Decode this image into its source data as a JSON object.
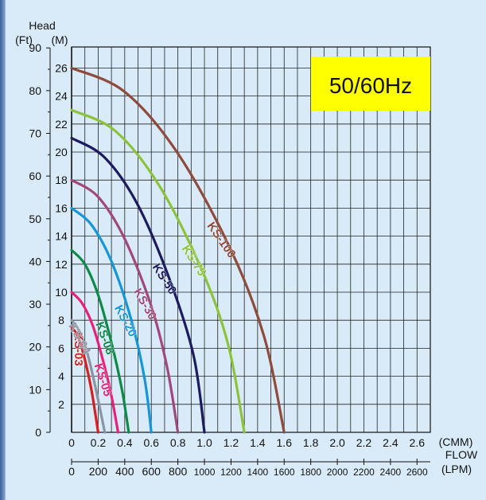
{
  "chart_data": {
    "type": "line",
    "badge": "50/60Hz",
    "ylabel_top": "Head",
    "ylabel_units_ft": "(Ft)",
    "ylabel_units_m": "(M)",
    "x_unit_top": "(CMM)",
    "x_label_flow": "FLOW",
    "x_unit_bottom": "(LPM)",
    "xlim": [
      0,
      2.7
    ],
    "ylim_m": [
      0,
      27.5
    ],
    "x_ticks_cmm": [
      "0",
      "0.2",
      "0.4",
      "0.6",
      "0.8",
      "1.0",
      "1.2",
      "1.4",
      "1.6",
      "1.8",
      "2.0",
      "2.2",
      "2.4",
      "2.6"
    ],
    "x_ticks_lpm": [
      "0",
      "200",
      "400",
      "600",
      "800",
      "1000",
      "1200",
      "1400",
      "1600",
      "1800",
      "2000",
      "2200",
      "2400",
      "2600"
    ],
    "y_ticks_m": [
      "2",
      "4",
      "6",
      "8",
      "10",
      "12",
      "14",
      "16",
      "18",
      "20",
      "22",
      "24",
      "26"
    ],
    "y_ticks_ft": [
      "0",
      "10",
      "20",
      "30",
      "40",
      "50",
      "60",
      "70",
      "80",
      "90"
    ],
    "series": [
      {
        "name": "KS-03",
        "color": "#d42020",
        "x": [
          0,
          0.05,
          0.1,
          0.15,
          0.2
        ],
        "y": [
          7.5,
          6.8,
          5.2,
          3.0,
          0
        ]
      },
      {
        "name": "KS-04",
        "color": "#8a94a4",
        "x": [
          0,
          0.06,
          0.12,
          0.18,
          0.25
        ],
        "y": [
          8.0,
          7.2,
          5.6,
          3.2,
          0
        ]
      },
      {
        "name": "KS-05",
        "color": "#e8207a",
        "x": [
          0,
          0.08,
          0.16,
          0.24,
          0.3,
          0.35
        ],
        "y": [
          10.0,
          9.2,
          7.6,
          5.0,
          2.6,
          0
        ]
      },
      {
        "name": "KS-08",
        "color": "#0e8a48",
        "x": [
          0,
          0.1,
          0.2,
          0.3,
          0.38,
          0.43
        ],
        "y": [
          13.0,
          12.0,
          9.8,
          6.4,
          3.0,
          0
        ]
      },
      {
        "name": "KS-20",
        "color": "#1596d8",
        "x": [
          0,
          0.15,
          0.3,
          0.45,
          0.55,
          0.6
        ],
        "y": [
          16.0,
          14.8,
          12.2,
          8.0,
          3.8,
          0
        ]
      },
      {
        "name": "KS-30",
        "color": "#a0487c",
        "x": [
          0,
          0.2,
          0.4,
          0.6,
          0.72,
          0.8
        ],
        "y": [
          18.0,
          16.8,
          13.8,
          9.0,
          4.6,
          0
        ]
      },
      {
        "name": "KS-50",
        "color": "#1c1a60",
        "x": [
          0,
          0.25,
          0.5,
          0.75,
          0.92,
          1.0
        ],
        "y": [
          21.0,
          19.6,
          16.2,
          10.6,
          5.4,
          0
        ]
      },
      {
        "name": "KS-75",
        "color": "#8cc33c",
        "x": [
          0,
          0.33,
          0.66,
          0.98,
          1.18,
          1.3
        ],
        "y": [
          23.0,
          21.5,
          17.6,
          11.6,
          6.2,
          0
        ]
      },
      {
        "name": "KS-100",
        "color": "#8e4a3a",
        "x": [
          0,
          0.4,
          0.8,
          1.2,
          1.45,
          1.6
        ],
        "y": [
          26.0,
          24.3,
          19.9,
          13.0,
          6.8,
          0
        ]
      }
    ]
  }
}
